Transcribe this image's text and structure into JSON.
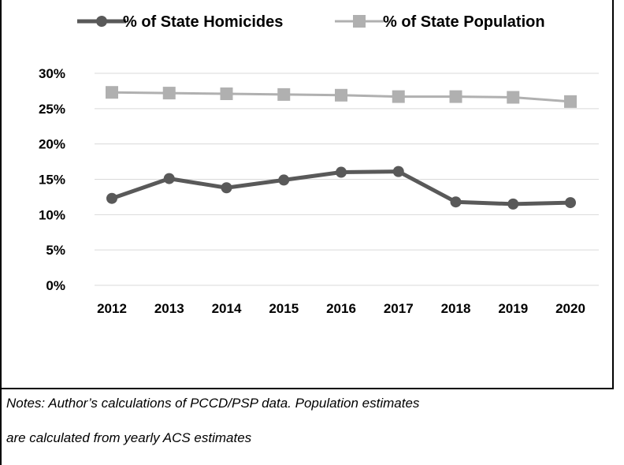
{
  "chart_data": {
    "type": "line",
    "title": "",
    "xlabel": "",
    "ylabel": "",
    "categories": [
      "2012",
      "2013",
      "2014",
      "2015",
      "2016",
      "2017",
      "2018",
      "2019",
      "2020"
    ],
    "series": [
      {
        "name": "% of State Homicides",
        "color": "#595959",
        "marker": "circle",
        "values": [
          12.3,
          15.1,
          13.8,
          14.9,
          16.0,
          16.1,
          11.8,
          11.5,
          11.7
        ]
      },
      {
        "name": "% of State Population",
        "color": "#b0b0b0",
        "marker": "square",
        "values": [
          27.3,
          27.2,
          27.1,
          27.0,
          26.9,
          26.7,
          26.7,
          26.6,
          26.0
        ]
      }
    ],
    "ylim": [
      0,
      30
    ],
    "yticks": [
      "0%",
      "5%",
      "10%",
      "15%",
      "20%",
      "25%",
      "30%"
    ],
    "grid": true,
    "legend": "top"
  },
  "notes": {
    "line1": "Notes:  Author’s calculations of PCCD/PSP data. Population estimates",
    "line2": "are calculated from yearly ACS estimates"
  }
}
